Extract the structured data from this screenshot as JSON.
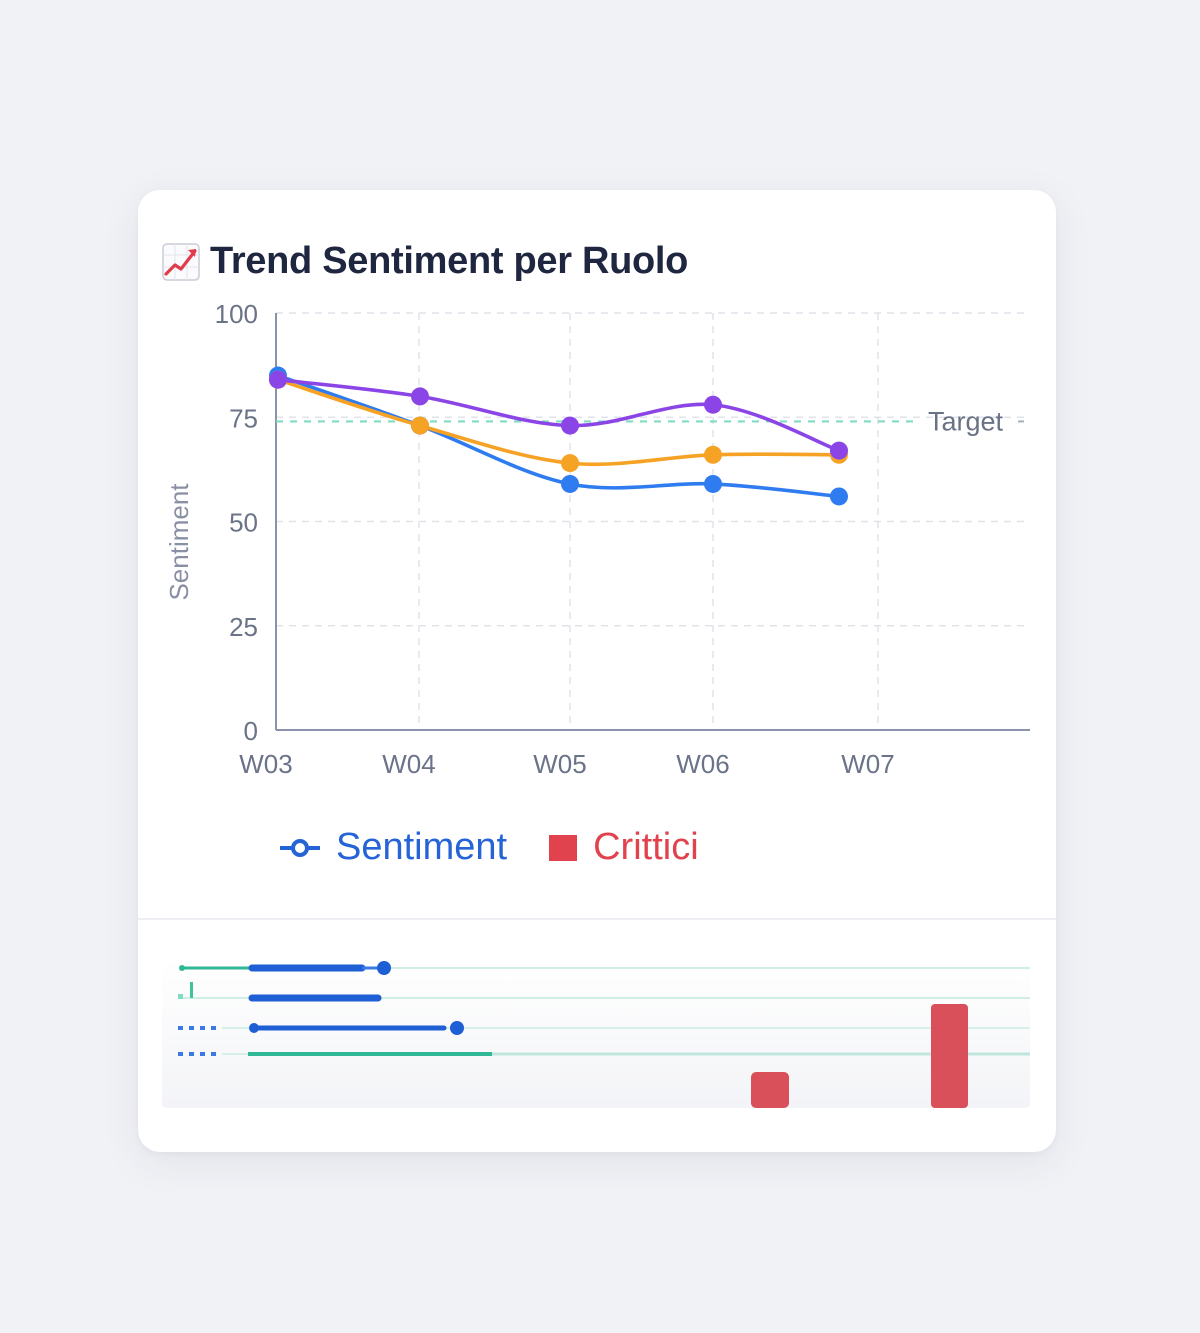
{
  "card": {
    "title": "Trend Sentiment per Ruolo",
    "title_icon": "chart-increasing-icon"
  },
  "chart_data": {
    "type": "line",
    "title": "Trend Sentiment per Ruolo",
    "ylabel": "Sentiment",
    "xlabel": "",
    "categories": [
      "W03",
      "W04",
      "W05",
      "W06",
      "W07"
    ],
    "yticks": [
      "0",
      "25",
      "50",
      "75",
      "100"
    ],
    "ylim": [
      0,
      100
    ],
    "grid": true,
    "target": {
      "label": "Target",
      "value": 74
    },
    "series": [
      {
        "color": "#8b45e6",
        "values": [
          84,
          80,
          73,
          78,
          67
        ]
      },
      {
        "color": "#f6a224",
        "values": [
          84,
          73,
          64,
          66,
          66
        ]
      },
      {
        "color": "#2f7cf0",
        "values": [
          85,
          73,
          59,
          59,
          56
        ]
      }
    ],
    "legend": [
      {
        "label": "Sentiment",
        "color": "#2563d6",
        "icon": "line-marker-icon"
      },
      {
        "label": "Crittici",
        "color": "#e0434e",
        "icon": "square-icon"
      }
    ],
    "legend_position": "bottom"
  },
  "colors": {
    "target_line": "#7fdcc3",
    "axis": "#8a93ab",
    "grid": "#e0e3ea",
    "critical_bar": "#d9505a"
  }
}
